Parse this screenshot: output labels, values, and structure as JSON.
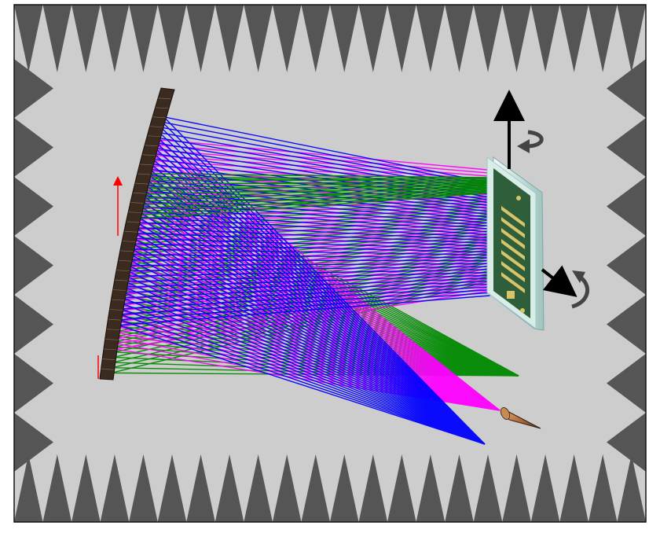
{
  "colors": {
    "background": "#cdcdcd",
    "absorber": "#555555",
    "frame": "#111111",
    "mirror": "#3b2a1f",
    "mirror_grid": "#7a6652",
    "beam_green": "#008a00",
    "beam_magenta": "#ff00ff",
    "beam_blue": "#0000ff",
    "feed_horn": "#b07040",
    "board_green": "#2f5e3a",
    "board_trace": "#d8c46a",
    "board_frame": "#d9ece8",
    "arrow": "#000000",
    "rotation_arrow": "#444444",
    "axis_red": "#ff0000"
  },
  "icons": {
    "rotation_top": "rotation-arrow-icon",
    "rotation_side": "rotation-arrow-icon",
    "axis_vertical": "arrow-up-icon",
    "axis_diagonal": "arrow-down-right-icon"
  }
}
